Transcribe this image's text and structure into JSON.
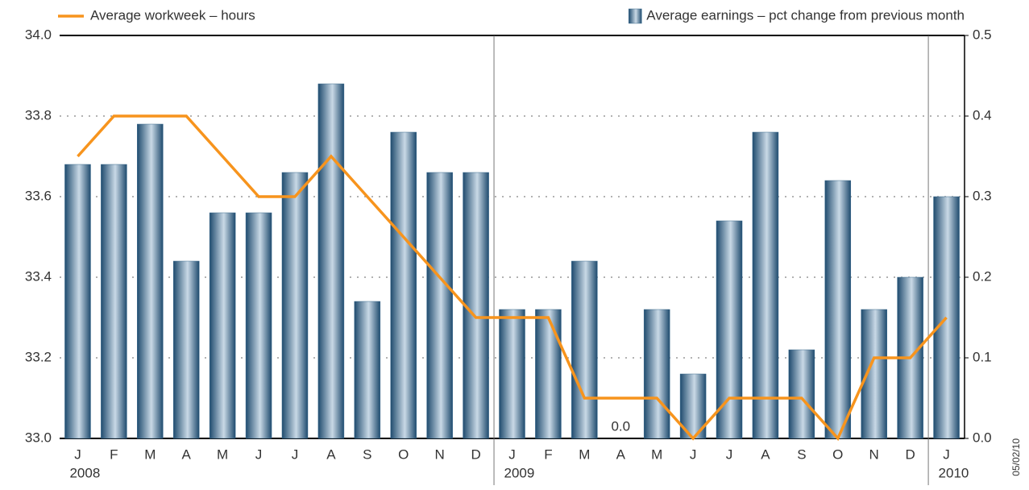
{
  "chart_data": {
    "type": "bar-line",
    "categories": [
      "J",
      "F",
      "M",
      "A",
      "M",
      "J",
      "J",
      "A",
      "S",
      "O",
      "N",
      "D",
      "J",
      "F",
      "M",
      "A",
      "M",
      "J",
      "J",
      "A",
      "S",
      "O",
      "N",
      "D",
      "J"
    ],
    "years": [
      "2008",
      null,
      null,
      null,
      null,
      null,
      null,
      null,
      null,
      null,
      null,
      null,
      "2009",
      null,
      null,
      null,
      null,
      null,
      null,
      null,
      null,
      null,
      null,
      null,
      "2010"
    ],
    "series": [
      {
        "name": "Average earnings – pct change from previous month",
        "type": "bar",
        "axis": "y2",
        "color": "#3a6a8e",
        "values": [
          0.34,
          0.34,
          0.39,
          0.22,
          0.28,
          0.28,
          0.33,
          0.44,
          0.17,
          0.38,
          0.33,
          0.33,
          0.16,
          0.16,
          0.22,
          0,
          0.16,
          0.08,
          0.27,
          0.38,
          0.11,
          0.32,
          0.16,
          0.2,
          0.3
        ],
        "value_labels": [
          null,
          null,
          null,
          null,
          null,
          null,
          null,
          null,
          null,
          null,
          null,
          null,
          null,
          null,
          null,
          "0.0",
          null,
          null,
          null,
          null,
          null,
          null,
          null,
          null,
          null
        ]
      },
      {
        "name": "Average workweek – hours",
        "type": "line",
        "axis": "y",
        "color": "#f7941d",
        "values": [
          33.7,
          33.8,
          33.8,
          33.8,
          33.7,
          33.6,
          33.6,
          33.7,
          33.6,
          33.5,
          33.4,
          33.3,
          33.3,
          33.3,
          33.1,
          33.1,
          33.1,
          33.0,
          33.1,
          33.1,
          33.1,
          33.0,
          33.2,
          33.2,
          33.3
        ]
      }
    ],
    "ylim": [
      33,
      34
    ],
    "yticks": [
      {
        "value": 33,
        "label": "33.0"
      },
      33.2,
      33.4,
      33.6,
      33.8,
      {
        "value": 34,
        "label": "34.0"
      }
    ],
    "y2lim": [
      0,
      0.5
    ],
    "y2ticks": [
      {
        "value": 0,
        "label": "0.0"
      },
      0.1,
      0.2,
      0.3,
      0.4,
      0.5
    ],
    "grid": true,
    "date_note": "05/02/10"
  }
}
